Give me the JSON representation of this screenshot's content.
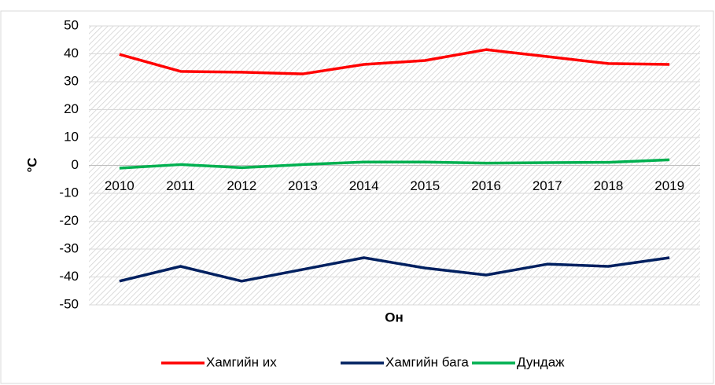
{
  "chart_data": {
    "type": "line",
    "y_label": "°C",
    "x_label": "Он",
    "categories": [
      "2010",
      "2011",
      "2012",
      "2013",
      "2014",
      "2015",
      "2016",
      "2017",
      "2018",
      "2019"
    ],
    "series": [
      {
        "name": "Хамгийн их",
        "color": "#ff0000",
        "values": [
          39.8,
          33.7,
          33.4,
          32.8,
          36.2,
          37.6,
          41.5,
          39,
          36.5,
          36.2
        ]
      },
      {
        "name": "Хамгийн бага",
        "color": "#002060",
        "values": [
          -41.5,
          -36.2,
          -41.5,
          -37.3,
          -33.1,
          -36.8,
          -39.3,
          -35.4,
          -36.2,
          -33.1
        ]
      },
      {
        "name": "Дундаж",
        "color": "#00b050",
        "values": [
          -1,
          0.3,
          -0.8,
          0.3,
          1.2,
          1.2,
          0.8,
          1,
          1.1,
          2
        ]
      }
    ],
    "ylim": [
      -50,
      50
    ],
    "yticks": [
      -50,
      -40,
      -30,
      -20,
      -10,
      0,
      10,
      20,
      30,
      40,
      50
    ],
    "grid": true,
    "legend": "bottom"
  }
}
